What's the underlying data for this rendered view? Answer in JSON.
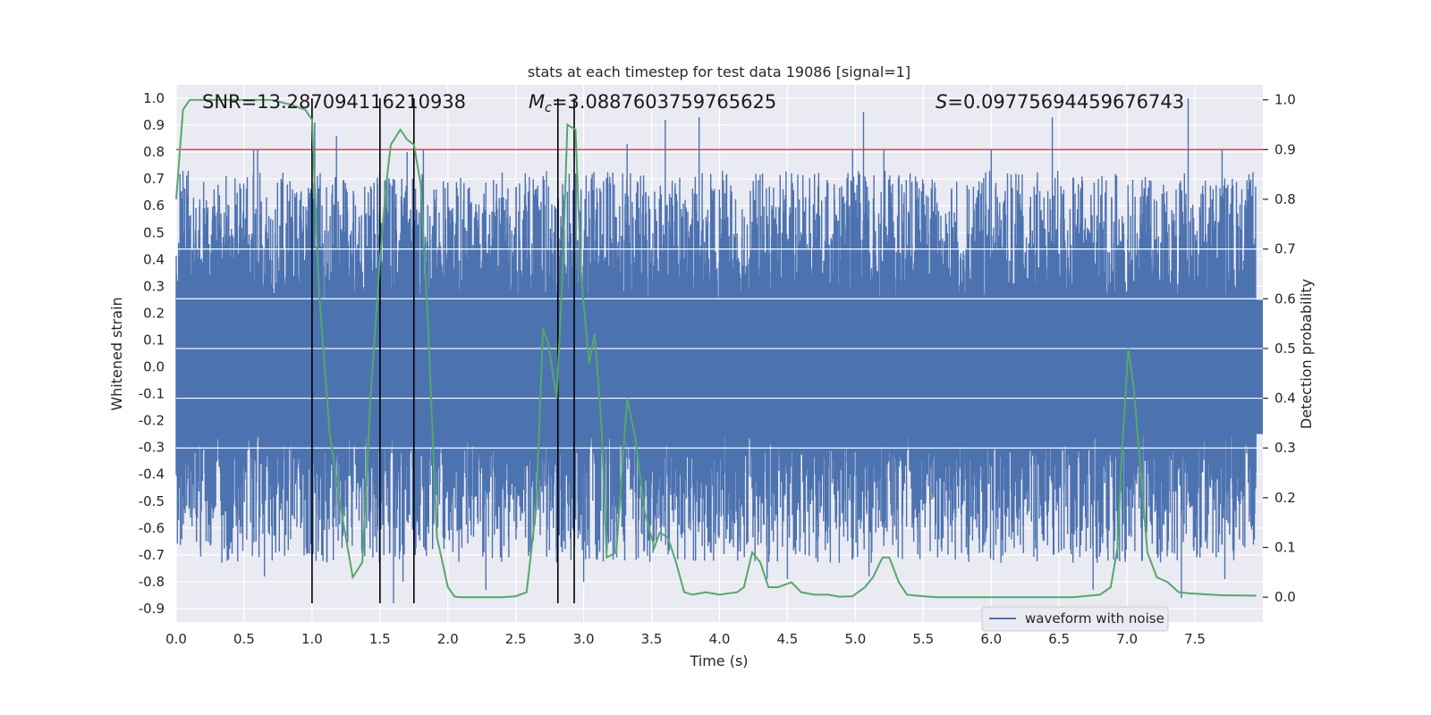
{
  "chart_data": {
    "type": "line",
    "title": "stats at each timestep for test data 19086 [signal=1]",
    "xlabel": "Time (s)",
    "ylabel": "Whitened strain",
    "y2label": "Detection probability",
    "xlim": [
      0.0,
      8.0
    ],
    "ylim": [
      -0.95,
      1.05
    ],
    "y2lim": [
      -0.05,
      1.03
    ],
    "xticks": [
      0.0,
      0.5,
      1.0,
      1.5,
      2.0,
      2.5,
      3.0,
      3.5,
      4.0,
      4.5,
      5.0,
      5.5,
      6.0,
      6.5,
      7.0,
      7.5
    ],
    "xtick_labels": [
      "0.0",
      "0.5",
      "1.0",
      "1.5",
      "2.0",
      "2.5",
      "3.0",
      "3.5",
      "4.0",
      "4.5",
      "5.0",
      "5.5",
      "6.0",
      "6.5",
      "7.0",
      "7.5"
    ],
    "yticks": [
      1.0,
      0.9,
      0.8,
      0.7,
      0.6,
      0.5,
      0.4,
      0.3,
      0.2,
      0.1,
      0.0,
      -0.1,
      -0.2,
      -0.3,
      -0.4,
      -0.5,
      -0.6,
      -0.7,
      -0.8,
      -0.9
    ],
    "ytick_labels": [
      "1.0",
      "0.9",
      "0.8",
      "0.7",
      "0.6",
      "0.5",
      "0.4",
      "0.3",
      "0.2",
      "0.1",
      "0.0",
      "-0.1",
      "-0.2",
      "-0.3",
      "-0.4",
      "-0.5",
      "-0.6",
      "-0.7",
      "-0.8",
      "-0.9"
    ],
    "y2ticks": [
      1.0,
      0.9,
      0.8,
      0.7,
      0.6,
      0.5,
      0.4,
      0.3,
      0.2,
      0.1,
      0.0
    ],
    "y2tick_labels": [
      "1.0",
      "0.9",
      "0.8",
      "0.7",
      "0.6",
      "0.5",
      "0.4",
      "0.3",
      "0.2",
      "0.1",
      "0.0"
    ],
    "annotations": {
      "snr": "SNR=13.287094116210938",
      "mc_symbol": "M",
      "mc_sub": "c",
      "mc_value": "=3.0887603759765625",
      "s_symbol": "S",
      "s_value": "=0.09775694459676743"
    },
    "threshold": {
      "value": 0.9,
      "axis": "y2",
      "color": "#c44e52"
    },
    "vertical_lines": {
      "x": [
        1.0,
        1.5,
        1.75,
        2.81,
        2.93
      ],
      "y_from": -0.88,
      "y_to": 1.0,
      "color": "#000000"
    },
    "waveform": {
      "name": "waveform with noise",
      "color": "#4c72b0",
      "core_amplitude": 0.25,
      "spike_max": [
        [
          0.05,
          0.73
        ],
        [
          0.57,
          0.81
        ],
        [
          0.6,
          0.81
        ],
        [
          1.02,
          0.91
        ],
        [
          1.18,
          0.86
        ],
        [
          1.7,
          0.8
        ],
        [
          1.82,
          0.81
        ],
        [
          3.32,
          0.83
        ],
        [
          3.6,
          0.92
        ],
        [
          3.85,
          0.93
        ],
        [
          4.98,
          0.81
        ],
        [
          5.06,
          0.95
        ],
        [
          5.21,
          0.81
        ],
        [
          6.0,
          0.81
        ],
        [
          6.45,
          0.93
        ],
        [
          7.45,
          1.0
        ],
        [
          7.7,
          0.81
        ]
      ],
      "spike_min": [
        [
          0.65,
          -0.78
        ],
        [
          1.6,
          -0.88
        ],
        [
          1.67,
          -0.8
        ],
        [
          2.28,
          -0.83
        ],
        [
          3.0,
          -0.8
        ],
        [
          4.35,
          -0.79
        ],
        [
          4.5,
          -0.79
        ],
        [
          5.1,
          -0.78
        ],
        [
          6.75,
          -0.83
        ],
        [
          7.4,
          -0.86
        ],
        [
          7.72,
          -0.79
        ]
      ]
    },
    "series": [
      {
        "name": "detection probability",
        "axis": "y2",
        "color": "#55a868",
        "x": [
          0.0,
          0.05,
          0.1,
          0.2,
          0.3,
          0.5,
          0.7,
          0.85,
          0.95,
          1.0,
          1.05,
          1.13,
          1.23,
          1.3,
          1.37,
          1.43,
          1.5,
          1.55,
          1.58,
          1.65,
          1.7,
          1.75,
          1.8,
          1.85,
          1.92,
          2.0,
          2.05,
          2.1,
          2.2,
          2.4,
          2.5,
          2.58,
          2.65,
          2.7,
          2.74,
          2.8,
          2.84,
          2.88,
          2.94,
          2.98,
          3.04,
          3.08,
          3.13,
          3.17,
          3.24,
          3.32,
          3.38,
          3.45,
          3.52,
          3.56,
          3.62,
          3.68,
          3.74,
          3.8,
          3.9,
          4.0,
          4.13,
          4.18,
          4.24,
          4.3,
          4.36,
          4.43,
          4.53,
          4.6,
          4.7,
          4.8,
          4.88,
          4.98,
          5.07,
          5.13,
          5.2,
          5.25,
          5.32,
          5.38,
          5.5,
          5.6,
          6.0,
          6.4,
          6.6,
          6.8,
          6.88,
          6.93,
          6.96,
          7.01,
          7.05,
          7.15,
          7.22,
          7.3,
          7.38,
          7.45,
          7.55,
          7.7,
          7.95
        ],
        "y": [
          0.8,
          0.98,
          1.0,
          1.0,
          1.0,
          1.0,
          1.0,
          0.99,
          0.98,
          0.96,
          0.62,
          0.33,
          0.15,
          0.04,
          0.07,
          0.4,
          0.68,
          0.84,
          0.91,
          0.94,
          0.92,
          0.91,
          0.83,
          0.57,
          0.12,
          0.02,
          0.001,
          0.0,
          0.0,
          0.0,
          0.002,
          0.01,
          0.18,
          0.54,
          0.51,
          0.4,
          0.62,
          0.95,
          0.94,
          0.65,
          0.47,
          0.53,
          0.35,
          0.08,
          0.09,
          0.4,
          0.32,
          0.17,
          0.1,
          0.13,
          0.12,
          0.07,
          0.01,
          0.005,
          0.01,
          0.005,
          0.01,
          0.02,
          0.09,
          0.07,
          0.02,
          0.02,
          0.03,
          0.01,
          0.005,
          0.005,
          0.001,
          0.002,
          0.02,
          0.04,
          0.08,
          0.08,
          0.03,
          0.005,
          0.002,
          0.0,
          0.0,
          0.0,
          0.0,
          0.005,
          0.02,
          0.1,
          0.28,
          0.5,
          0.42,
          0.09,
          0.04,
          0.03,
          0.01,
          0.008,
          0.006,
          0.004,
          0.003
        ]
      }
    ],
    "legend": {
      "entries": [
        "waveform with noise"
      ],
      "placement": "lower-right"
    }
  }
}
